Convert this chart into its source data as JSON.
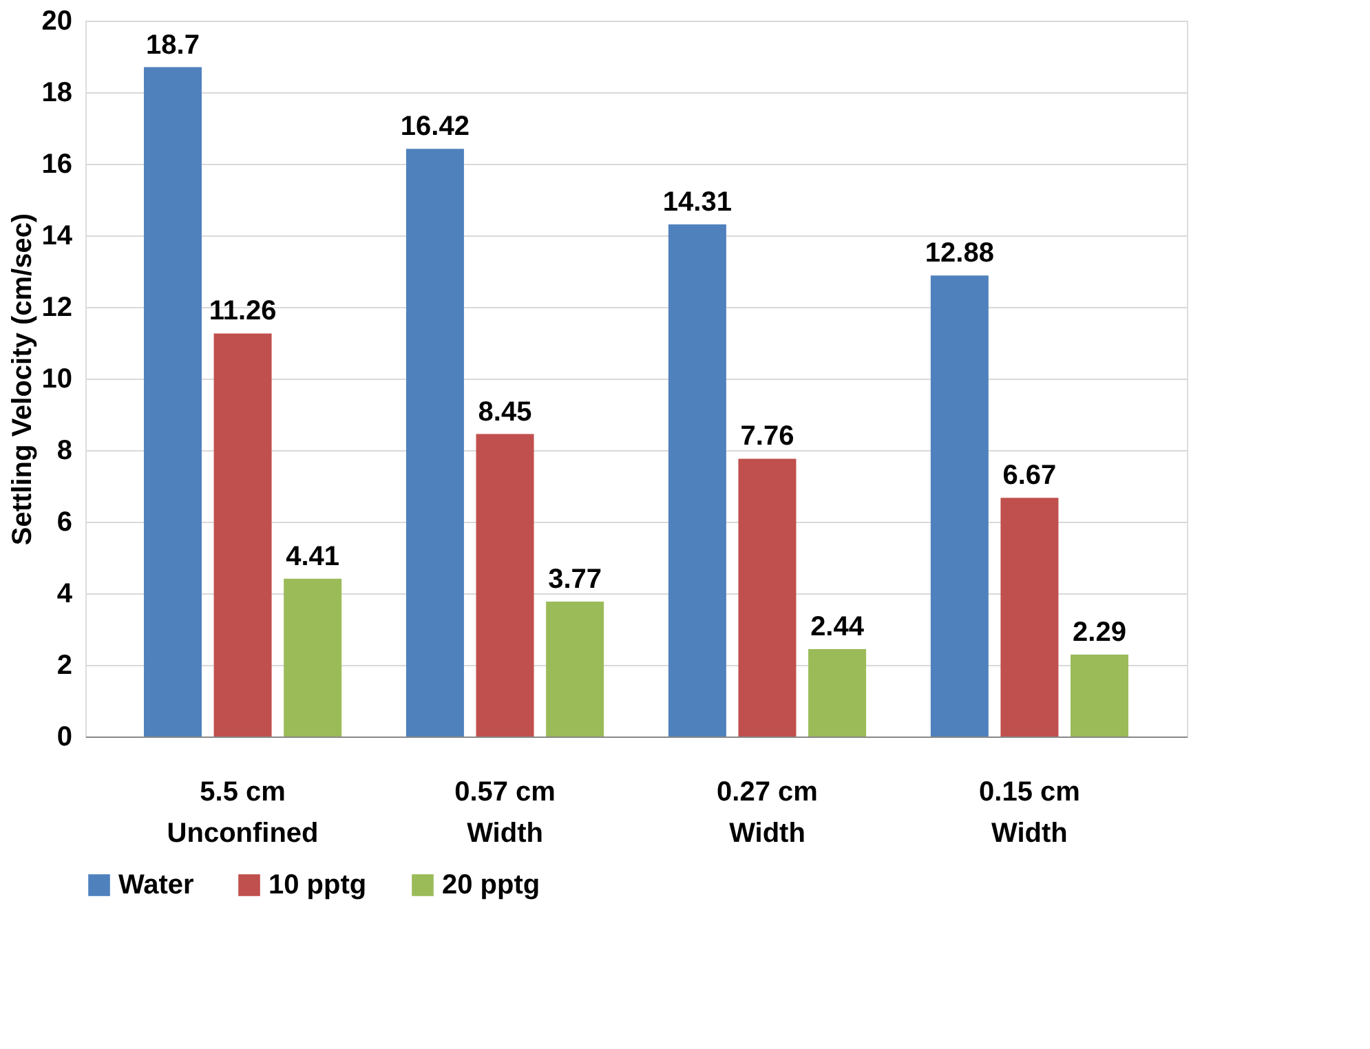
{
  "chart_data": {
    "type": "bar",
    "ylabel": "Settling Velocity (cm/sec)",
    "categories": [
      "5.5 cm\nUnconfined",
      "0.57 cm\nWidth",
      "0.27 cm\nWidth",
      "0.15 cm\nWidth"
    ],
    "series": [
      {
        "name": "Water",
        "color": "#4f81bd",
        "values": [
          18.7,
          16.42,
          14.31,
          12.88
        ]
      },
      {
        "name": "10 pptg",
        "color": "#c0504d",
        "values": [
          11.26,
          8.45,
          7.76,
          6.67
        ]
      },
      {
        "name": "20 pptg",
        "color": "#9bbb59",
        "values": [
          4.41,
          3.77,
          2.44,
          2.29
        ]
      }
    ],
    "ylim": [
      0,
      20
    ],
    "yticks": [
      0,
      2,
      4,
      6,
      8,
      10,
      12,
      14,
      16,
      18,
      20
    ],
    "grid": "y",
    "legend": "bottom",
    "data_labels": true
  }
}
